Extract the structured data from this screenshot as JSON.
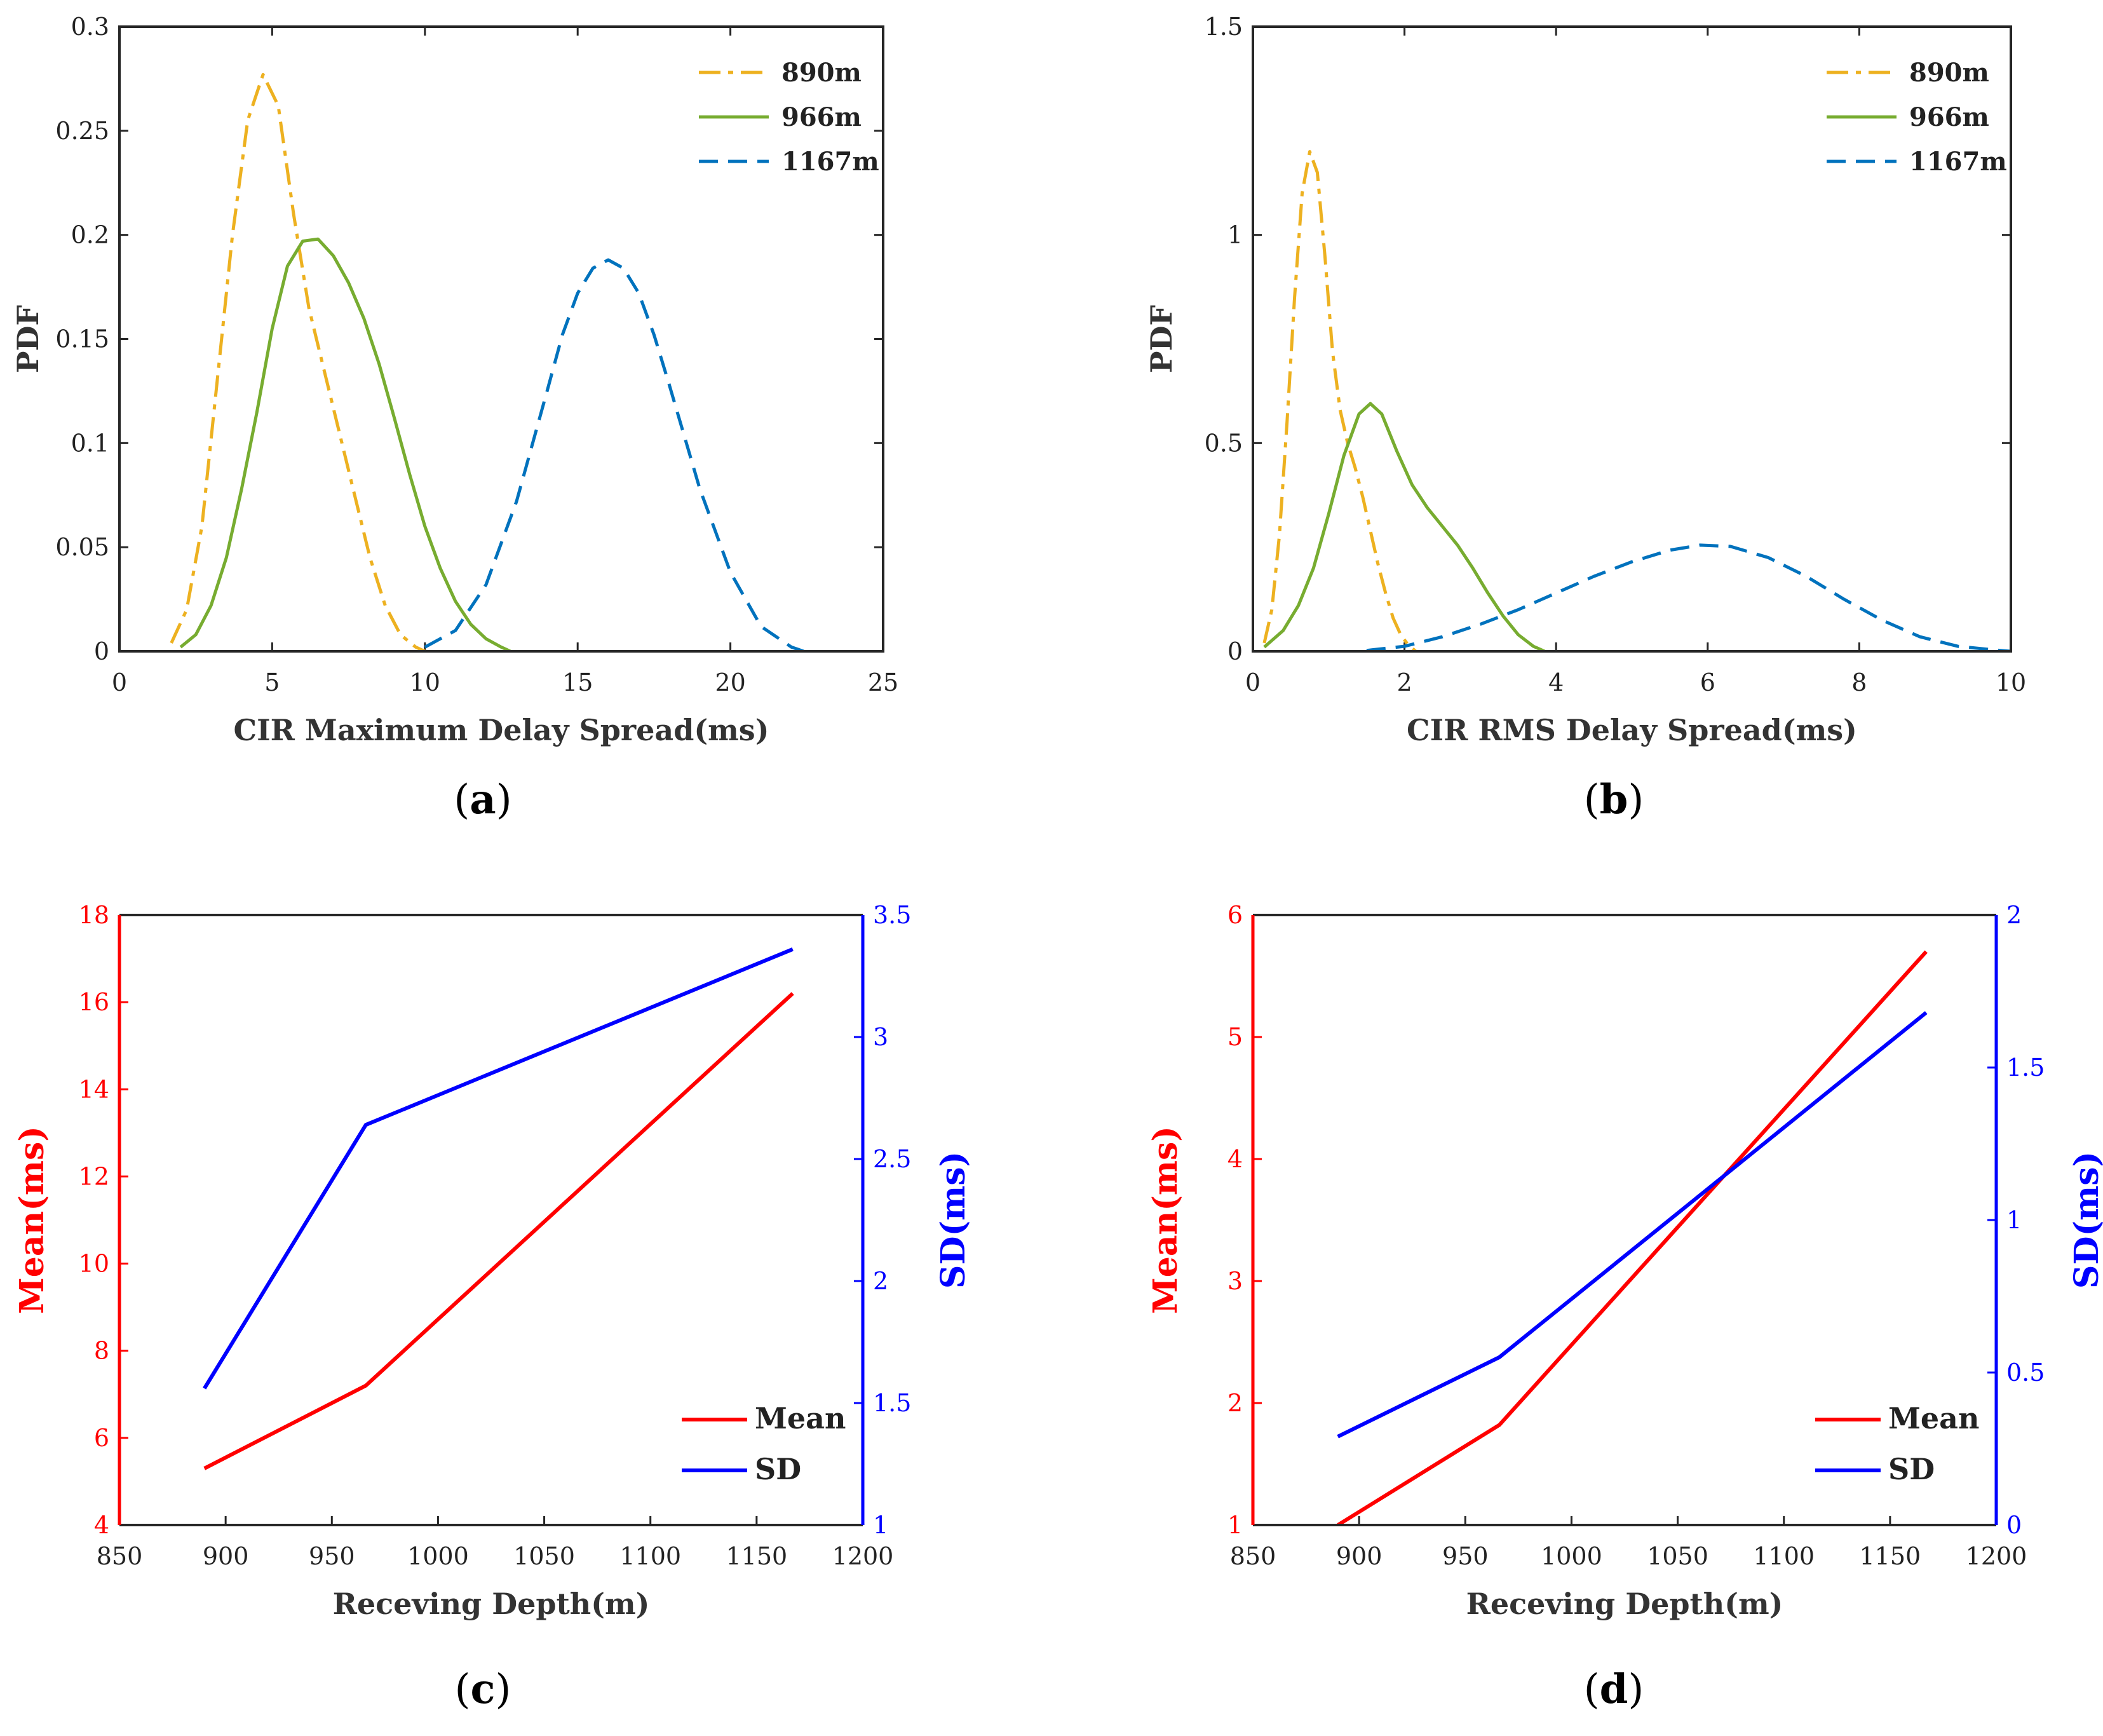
{
  "figure": {
    "panels": [
      {
        "open": "(",
        "letter": "a",
        "close": ")"
      },
      {
        "open": "(",
        "letter": "b",
        "close": ")"
      },
      {
        "open": "(",
        "letter": "c",
        "close": ")"
      },
      {
        "open": "(",
        "letter": "d",
        "close": ")"
      }
    ]
  },
  "colors": {
    "s890": "#EDB120",
    "s966": "#77AC30",
    "s1167": "#0072BD",
    "mean": "#FF0000",
    "sd": "#0000FF",
    "axis": "#262626"
  },
  "chart_data": [
    {
      "id": "a",
      "type": "line",
      "title": "",
      "xlabel": "CIR Maximum Delay Spread(ms)",
      "ylabel": "PDF",
      "xlim": [
        0,
        25
      ],
      "ylim": [
        0,
        0.3
      ],
      "xticks": [
        0,
        5,
        10,
        15,
        20,
        25
      ],
      "xtick_labels": [
        "0",
        "5",
        "10",
        "15",
        "20",
        "25"
      ],
      "yticks": [
        0,
        0.05,
        0.1,
        0.15,
        0.2,
        0.25,
        0.3
      ],
      "ytick_labels": [
        "0",
        "0.05",
        "0.1",
        "0.15",
        "0.2",
        "0.25",
        "0.3"
      ],
      "legend_position": "top-right",
      "series": [
        {
          "name": "890m",
          "style": "dashdot",
          "x": [
            1.7,
            2.2,
            2.7,
            3.2,
            3.7,
            4.2,
            4.7,
            5.2,
            5.7,
            6.2,
            6.7,
            7.2,
            7.7,
            8.2,
            8.7,
            9.2,
            9.7,
            10.0
          ],
          "y": [
            0.004,
            0.02,
            0.06,
            0.13,
            0.2,
            0.255,
            0.277,
            0.262,
            0.21,
            0.165,
            0.135,
            0.105,
            0.075,
            0.045,
            0.022,
            0.008,
            0.002,
            0.0
          ]
        },
        {
          "name": "966m",
          "style": "solid",
          "x": [
            2.0,
            2.5,
            3.0,
            3.5,
            4.0,
            4.5,
            5.0,
            5.5,
            6.0,
            6.5,
            7.0,
            7.5,
            8.0,
            8.5,
            9.0,
            9.5,
            10.0,
            10.5,
            11.0,
            11.5,
            12.0,
            12.5,
            12.8
          ],
          "y": [
            0.002,
            0.008,
            0.022,
            0.045,
            0.078,
            0.115,
            0.155,
            0.185,
            0.197,
            0.198,
            0.19,
            0.177,
            0.16,
            0.138,
            0.112,
            0.085,
            0.06,
            0.04,
            0.024,
            0.013,
            0.006,
            0.002,
            0.0
          ]
        },
        {
          "name": "1167m",
          "style": "dashed",
          "x": [
            10.0,
            11.0,
            12.0,
            13.0,
            14.0,
            14.5,
            15.0,
            15.5,
            16.0,
            16.5,
            17.0,
            17.5,
            18.0,
            19.0,
            20.0,
            21.0,
            22.0,
            22.4
          ],
          "y": [
            0.002,
            0.01,
            0.032,
            0.072,
            0.125,
            0.152,
            0.172,
            0.184,
            0.188,
            0.184,
            0.172,
            0.152,
            0.128,
            0.078,
            0.038,
            0.012,
            0.002,
            0.0
          ]
        }
      ]
    },
    {
      "id": "b",
      "type": "line",
      "title": "",
      "xlabel": "CIR RMS Delay Spread(ms)",
      "ylabel": "PDF",
      "xlim": [
        0,
        10
      ],
      "ylim": [
        0,
        1.5
      ],
      "xticks": [
        0,
        2,
        4,
        6,
        8,
        10
      ],
      "xtick_labels": [
        "0",
        "2",
        "4",
        "6",
        "8",
        "10"
      ],
      "yticks": [
        0,
        0.5,
        1,
        1.5
      ],
      "ytick_labels": [
        "0",
        "0.5",
        "1",
        "1.5"
      ],
      "legend_position": "top-right",
      "series": [
        {
          "name": "890m",
          "style": "dashdot",
          "x": [
            0.15,
            0.25,
            0.35,
            0.45,
            0.55,
            0.65,
            0.75,
            0.85,
            0.95,
            1.05,
            1.15,
            1.25,
            1.35,
            1.45,
            1.55,
            1.65,
            1.75,
            1.85,
            1.95,
            2.05,
            2.15
          ],
          "y": [
            0.02,
            0.1,
            0.28,
            0.55,
            0.85,
            1.1,
            1.2,
            1.15,
            0.95,
            0.72,
            0.58,
            0.5,
            0.44,
            0.37,
            0.29,
            0.21,
            0.14,
            0.08,
            0.04,
            0.015,
            0.0
          ]
        },
        {
          "name": "966m",
          "style": "solid",
          "x": [
            0.15,
            0.4,
            0.6,
            0.8,
            1.0,
            1.2,
            1.4,
            1.55,
            1.7,
            1.9,
            2.1,
            2.3,
            2.5,
            2.7,
            2.9,
            3.1,
            3.3,
            3.5,
            3.7,
            3.85
          ],
          "y": [
            0.01,
            0.05,
            0.11,
            0.2,
            0.33,
            0.47,
            0.57,
            0.595,
            0.57,
            0.48,
            0.4,
            0.345,
            0.3,
            0.255,
            0.2,
            0.14,
            0.085,
            0.04,
            0.012,
            0.0
          ]
        },
        {
          "name": "1167m",
          "style": "dashed",
          "x": [
            1.5,
            2.0,
            2.5,
            3.0,
            3.5,
            4.0,
            4.5,
            5.0,
            5.5,
            5.9,
            6.3,
            6.8,
            7.3,
            7.8,
            8.3,
            8.8,
            9.3,
            9.8,
            10.0
          ],
          "y": [
            0.002,
            0.012,
            0.035,
            0.065,
            0.1,
            0.14,
            0.18,
            0.215,
            0.243,
            0.255,
            0.252,
            0.225,
            0.18,
            0.125,
            0.075,
            0.035,
            0.012,
            0.003,
            0.0
          ]
        }
      ]
    },
    {
      "id": "c",
      "type": "line",
      "title": "",
      "xlabel": "Receving Depth(m)",
      "ylabel": "Mean(ms)",
      "ylabel_right": "SD(ms)",
      "xlim": [
        850,
        1200
      ],
      "ylim": [
        4,
        18
      ],
      "ylim_right": [
        1,
        3.5
      ],
      "xticks": [
        850,
        900,
        950,
        1000,
        1050,
        1100,
        1150,
        1200
      ],
      "xtick_labels": [
        "850",
        "900",
        "950",
        "1000",
        "1050",
        "1100",
        "1150",
        "1200"
      ],
      "yticks": [
        4,
        6,
        8,
        10,
        12,
        14,
        16,
        18
      ],
      "ytick_labels": [
        "4",
        "6",
        "8",
        "10",
        "12",
        "14",
        "16",
        "18"
      ],
      "yticks_right": [
        1,
        1.5,
        2,
        2.5,
        3,
        3.5
      ],
      "ytick_labels_right": [
        "1",
        "1.5",
        "2",
        "2.5",
        "3",
        "3.5"
      ],
      "legend_position": "bottom-right",
      "series": [
        {
          "name": "Mean",
          "axis": "left",
          "x": [
            890,
            966,
            1167
          ],
          "y": [
            5.3,
            7.2,
            16.2
          ]
        },
        {
          "name": "SD",
          "axis": "right",
          "x": [
            890,
            966,
            1167
          ],
          "y": [
            1.56,
            2.64,
            3.36
          ]
        }
      ]
    },
    {
      "id": "d",
      "type": "line",
      "title": "",
      "xlabel": "Receving Depth(m)",
      "ylabel": "Mean(ms)",
      "ylabel_right": "SD(ms)",
      "xlim": [
        850,
        1200
      ],
      "ylim": [
        1,
        6
      ],
      "ylim_right": [
        0,
        2
      ],
      "xticks": [
        850,
        900,
        950,
        1000,
        1050,
        1100,
        1150,
        1200
      ],
      "xtick_labels": [
        "850",
        "900",
        "950",
        "1000",
        "1050",
        "1100",
        "1150",
        "1200"
      ],
      "yticks": [
        1,
        2,
        3,
        4,
        5,
        6
      ],
      "ytick_labels": [
        "1",
        "2",
        "3",
        "4",
        "5",
        "6"
      ],
      "yticks_right": [
        0,
        0.5,
        1,
        1.5,
        2
      ],
      "ytick_labels_right": [
        "0",
        "0.5",
        "1",
        "1.5",
        "2"
      ],
      "legend_position": "bottom-right",
      "series": [
        {
          "name": "Mean",
          "axis": "left",
          "x": [
            890,
            966,
            1167
          ],
          "y": [
            1.0,
            1.82,
            5.7
          ]
        },
        {
          "name": "SD",
          "axis": "right",
          "x": [
            890,
            966,
            1167
          ],
          "y": [
            0.29,
            0.55,
            1.68
          ]
        }
      ]
    }
  ]
}
